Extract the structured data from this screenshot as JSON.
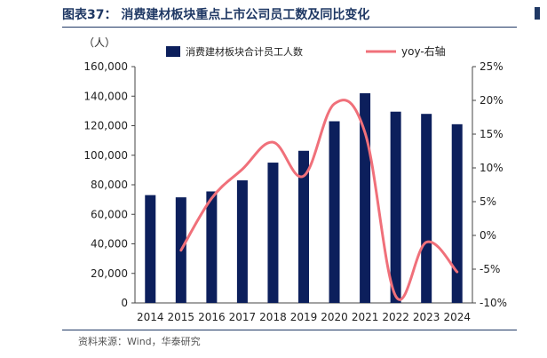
{
  "header": {
    "title": "图表37： 消费建材板块重点上市公司员工数及同比变化"
  },
  "footer": {
    "source": "资料来源：Wind，华泰研究"
  },
  "chart_data": {
    "type": "bar",
    "unit_label": "（人）",
    "categories": [
      "2014",
      "2015",
      "2016",
      "2017",
      "2018",
      "2019",
      "2020",
      "2021",
      "2022",
      "2023",
      "2024"
    ],
    "series": [
      {
        "name": "消费建材板块合计员工人数",
        "type": "bar",
        "axis": "left",
        "color": "#0c1f5c",
        "values": [
          73000,
          71500,
          75500,
          83000,
          95000,
          103000,
          123000,
          142000,
          129500,
          128000,
          121000
        ]
      },
      {
        "name": "yoy-右轴",
        "type": "line",
        "axis": "right",
        "color": "#f0707a",
        "values": [
          null,
          -2.2,
          5.5,
          9.8,
          13.8,
          8.8,
          19.5,
          15.2,
          -9.0,
          -1.0,
          -5.4
        ]
      }
    ],
    "left_axis": {
      "ylim": [
        0,
        160000
      ],
      "ticks": [
        0,
        20000,
        40000,
        60000,
        80000,
        100000,
        120000,
        140000,
        160000
      ],
      "tick_labels": [
        "0",
        "20,000",
        "40,000",
        "60,000",
        "80,000",
        "100,000",
        "120,000",
        "140,000",
        "160,000"
      ]
    },
    "right_axis": {
      "ylim": [
        -10,
        25
      ],
      "ticks": [
        -10,
        -5,
        0,
        5,
        10,
        15,
        20,
        25
      ],
      "tick_labels": [
        "-10%",
        "-5%",
        "0%",
        "5%",
        "10%",
        "15%",
        "20%",
        "25%"
      ]
    },
    "legend_position": "top",
    "grid": false
  }
}
